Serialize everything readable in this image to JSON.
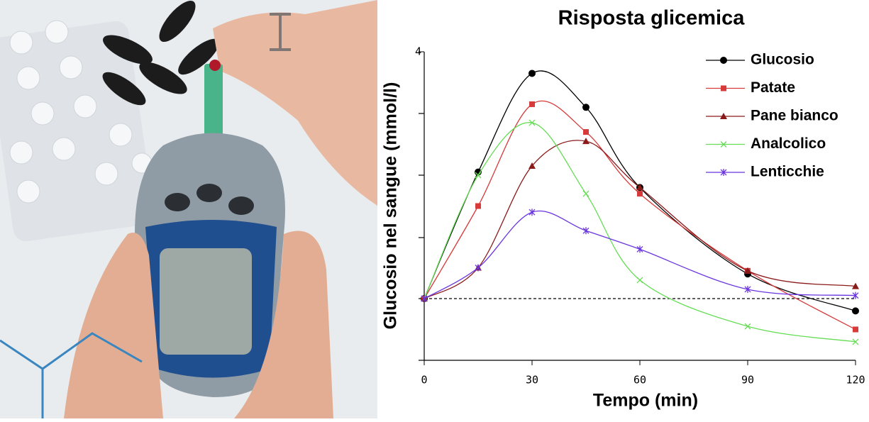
{
  "chart_data": {
    "type": "line",
    "title": "Risposta glicemica",
    "x_label": "Tempo (min)",
    "y_label": "Glucosio nel sangue (mmol/l)",
    "x": [
      0,
      15,
      30,
      45,
      60,
      90,
      120
    ],
    "xlim": [
      0,
      120
    ],
    "xticks": [
      0,
      30,
      60,
      90,
      120
    ],
    "ylim": [
      -1,
      4
    ],
    "yticks": [
      4
    ],
    "baseline": 0,
    "series": [
      {
        "name": "Glucosio",
        "color": "#000000",
        "marker": "circle",
        "values": [
          0,
          2.05,
          3.65,
          3.1,
          1.8,
          0.4,
          -0.2
        ]
      },
      {
        "name": "Patate",
        "color": "#d63a3a",
        "marker": "square",
        "values": [
          0,
          1.5,
          3.15,
          2.7,
          1.7,
          0.45,
          -0.5
        ]
      },
      {
        "name": "Pane bianco",
        "color": "#8b1a1a",
        "marker": "triangle",
        "values": [
          0,
          0.5,
          2.15,
          2.55,
          1.8,
          0.45,
          0.2
        ]
      },
      {
        "name": "Analcolico",
        "color": "#66dd55",
        "marker": "x",
        "values": [
          0,
          2.0,
          2.85,
          1.7,
          0.3,
          -0.45,
          -0.7
        ]
      },
      {
        "name": "Lenticchie",
        "color": "#6a35e0",
        "marker": "star",
        "values": [
          0,
          0.5,
          1.4,
          1.1,
          0.8,
          0.15,
          0.05
        ]
      }
    ]
  }
}
